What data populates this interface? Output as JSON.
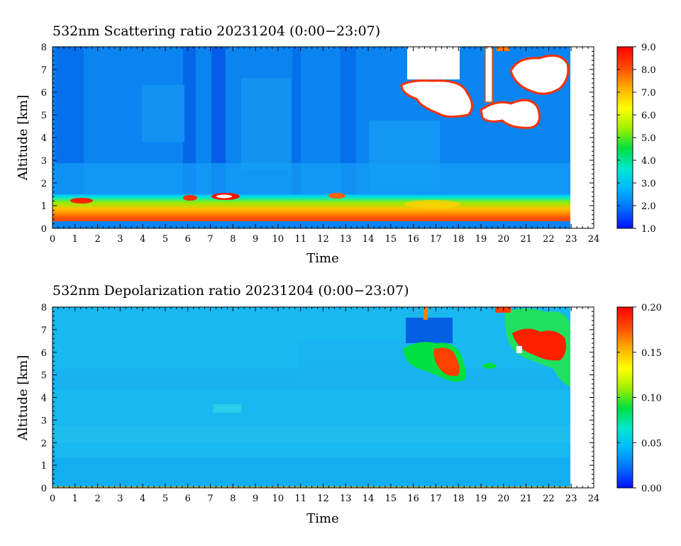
{
  "chart_data": [
    {
      "type": "heatmap",
      "title": "532nm Scattering ratio  20231204 (0:00−23:07)",
      "xlabel": "Time",
      "ylabel": "Altitude [km]",
      "xlim": [
        0,
        24
      ],
      "ylim": [
        0,
        8
      ],
      "x_ticks": [
        "0",
        "1",
        "2",
        "3",
        "4",
        "5",
        "6",
        "7",
        "8",
        "9",
        "10",
        "11",
        "12",
        "13",
        "14",
        "15",
        "16",
        "17",
        "18",
        "19",
        "20",
        "21",
        "22",
        "23",
        "24"
      ],
      "y_ticks": [
        "0",
        "1",
        "2",
        "3",
        "4",
        "5",
        "6",
        "7",
        "8"
      ],
      "data_end_time": 22.9,
      "colorbar": {
        "range": [
          1.0,
          9.0
        ],
        "ticks": [
          "1.0",
          "2.0",
          "3.0",
          "4.0",
          "5.0",
          "6.0",
          "7.0",
          "8.0",
          "9.0"
        ]
      },
      "features": [
        {
          "kind": "background",
          "altitude": [
            1.5,
            8
          ],
          "value": 1.9
        },
        {
          "kind": "boundary_layer",
          "altitude_bottom": 0.4,
          "altitude_top": 1.5,
          "value": 7.5
        },
        {
          "kind": "cloud",
          "time": [
            15.8,
            18.5
          ],
          "altitude": [
            4.9,
            6.4
          ],
          "value": 9.5
        },
        {
          "kind": "cloud",
          "time": [
            19.0,
            23.0
          ],
          "altitude": [
            4.6,
            8.0
          ],
          "value": 9.5
        }
      ]
    },
    {
      "type": "heatmap",
      "title": "532nm Depolarization ratio  20231204 (0:00−23:07)",
      "xlabel": "Time",
      "ylabel": "Altitude [km]",
      "xlim": [
        0,
        24
      ],
      "ylim": [
        0,
        8
      ],
      "x_ticks": [
        "0",
        "1",
        "2",
        "3",
        "4",
        "5",
        "6",
        "7",
        "8",
        "9",
        "10",
        "11",
        "12",
        "13",
        "14",
        "15",
        "16",
        "17",
        "18",
        "19",
        "20",
        "21",
        "22",
        "23",
        "24"
      ],
      "y_ticks": [
        "0",
        "1",
        "2",
        "3",
        "4",
        "5",
        "6",
        "7",
        "8"
      ],
      "data_end_time": 22.9,
      "colorbar": {
        "range": [
          0.0,
          0.2
        ],
        "ticks": [
          "0.00",
          "0.05",
          "0.10",
          "0.15",
          "0.20"
        ]
      },
      "features": [
        {
          "kind": "background",
          "altitude": [
            0,
            8
          ],
          "value": 0.045
        },
        {
          "kind": "ice_cloud",
          "time": [
            15.8,
            18.5
          ],
          "altitude": [
            4.8,
            6.3
          ],
          "value": 0.16
        },
        {
          "kind": "ice_cloud",
          "time": [
            20.0,
            23.0
          ],
          "altitude": [
            4.5,
            8.0
          ],
          "value": 0.17
        }
      ]
    }
  ],
  "colors": {
    "colormap": [
      "#0010ff",
      "#0070ff",
      "#00b8ff",
      "#00e8d0",
      "#00e040",
      "#a0f000",
      "#ffff00",
      "#ffb000",
      "#ff5000",
      "#ff0000"
    ],
    "saturated": "#ffffff"
  }
}
